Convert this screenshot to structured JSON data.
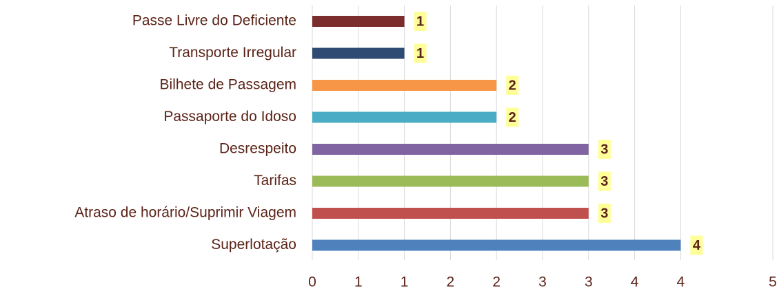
{
  "chart_data": {
    "type": "bar",
    "orientation": "horizontal",
    "categories": [
      "Passe Livre do Deficiente",
      "Transporte Irregular",
      "Bilhete de Passagem",
      "Passaporte do Idoso",
      "Desrespeito",
      "Tarifas",
      "Atraso de horário/Suprimir Viagem",
      "Superlotação"
    ],
    "values": [
      1,
      1,
      2,
      2,
      3,
      3,
      3,
      4
    ],
    "colors": [
      "#7b2c2c",
      "#2e4b73",
      "#f79646",
      "#4bacc6",
      "#8064a2",
      "#9bbb59",
      "#c0504d",
      "#4f81bd"
    ],
    "xlim": [
      0,
      5
    ],
    "xticks": [
      0,
      {
        "value": 0.5,
        "label": "1"
      },
      1,
      {
        "value": 1.5,
        "label": "2"
      },
      2,
      {
        "value": 2.5,
        "label": "3"
      },
      3,
      {
        "value": 3.5,
        "label": "4"
      },
      4,
      5
    ],
    "grid": true
  }
}
